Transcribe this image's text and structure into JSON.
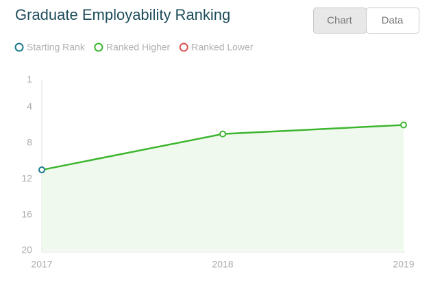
{
  "chart_data": {
    "type": "line",
    "title": "Graduate Employability Ranking",
    "legend": [
      {
        "name": "Starting Rank",
        "color": "#1b7a8c"
      },
      {
        "name": "Ranked Higher",
        "color": "#3db52f"
      },
      {
        "name": "Ranked Lower",
        "color": "#d9534f"
      }
    ],
    "categories": [
      "2017",
      "2018",
      "2019"
    ],
    "series": [
      {
        "name": "Rank",
        "color": "#3db52f",
        "values": [
          11,
          7,
          6
        ]
      }
    ],
    "point_colors": [
      "#1b7a8c",
      "#3db52f",
      "#3db52f"
    ],
    "area_fill": "#eff9ed",
    "ylim": [
      20,
      1
    ],
    "yticks": [
      1,
      4,
      8,
      12,
      16,
      20
    ]
  },
  "view_toggle": {
    "buttons": [
      "Chart",
      "Data"
    ],
    "active": 0
  }
}
